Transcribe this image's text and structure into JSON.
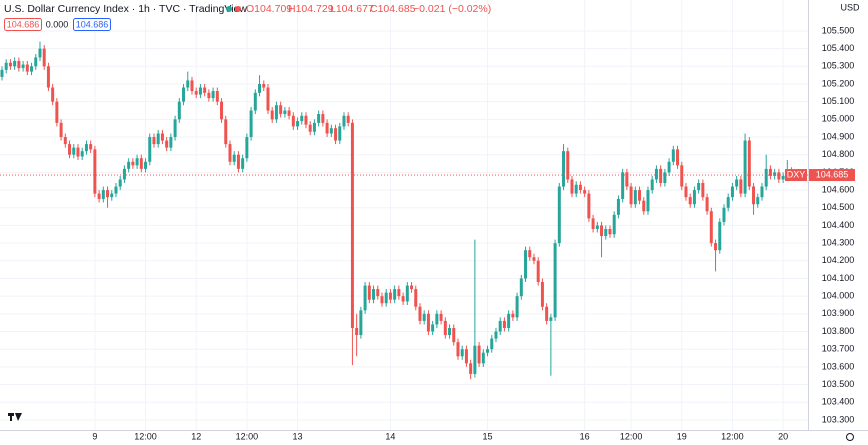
{
  "header": {
    "title": "U.S. Dollar Currency Index · 1h · TVC · TradingView",
    "open": "O104.709",
    "high": "H104.729",
    "low": "L104.677",
    "close": "C104.685",
    "change": "−0.021 (−0.02%)",
    "boxes": [
      "104.686",
      "0.000",
      "104.686"
    ],
    "currency": "USD"
  },
  "chart_data": {
    "type": "candlestick",
    "up_color": "#26a69a",
    "down_color": "#ef5350",
    "grid": true,
    "symbol": "DXY",
    "last_price": 104.685,
    "xlim": [
      -0.47,
      190.9
    ],
    "xticks": [
      {
        "value": 22,
        "label": "9"
      },
      {
        "value": 34,
        "label": "12:00"
      },
      {
        "value": 46,
        "label": "12"
      },
      {
        "value": 58,
        "label": "12:00"
      },
      {
        "value": 70,
        "label": "13"
      },
      {
        "value": 92,
        "label": "14"
      },
      {
        "value": 115,
        "label": "15"
      },
      {
        "value": 138,
        "label": "16"
      },
      {
        "value": 149,
        "label": "12:00"
      },
      {
        "value": 161,
        "label": "19"
      },
      {
        "value": 173,
        "label": "12:00"
      },
      {
        "value": 185,
        "label": "20"
      }
    ],
    "ylim": [
      103.243,
      105.675
    ],
    "yticks": [
      {
        "value": 105.5,
        "label": "105.500"
      },
      {
        "value": 105.4,
        "label": "105.400"
      },
      {
        "value": 105.3,
        "label": "105.300"
      },
      {
        "value": 105.2,
        "label": "105.200"
      },
      {
        "value": 105.1,
        "label": "105.100"
      },
      {
        "value": 105.0,
        "label": "105.000"
      },
      {
        "value": 104.9,
        "label": "104.900"
      },
      {
        "value": 104.8,
        "label": "104.800"
      },
      {
        "value": 104.7,
        "label": "104.700"
      },
      {
        "value": 104.6,
        "label": "104.600"
      },
      {
        "value": 104.5,
        "label": "104.500"
      },
      {
        "value": 104.4,
        "label": "104.400"
      },
      {
        "value": 104.3,
        "label": "104.300"
      },
      {
        "value": 104.2,
        "label": "104.200"
      },
      {
        "value": 104.1,
        "label": "104.100"
      },
      {
        "value": 104.0,
        "label": "104.000"
      },
      {
        "value": 103.9,
        "label": "103.900"
      },
      {
        "value": 103.8,
        "label": "103.800"
      },
      {
        "value": 103.7,
        "label": "103.700"
      },
      {
        "value": 103.6,
        "label": "103.600"
      },
      {
        "value": 103.5,
        "label": "103.500"
      },
      {
        "value": 103.4,
        "label": "103.400"
      },
      {
        "value": 103.3,
        "label": "103.300"
      }
    ],
    "ohlc": [
      [
        105.24,
        105.3,
        105.22,
        105.28
      ],
      [
        105.28,
        105.34,
        105.26,
        105.32
      ],
      [
        105.32,
        105.34,
        105.28,
        105.3
      ],
      [
        105.3,
        105.35,
        105.28,
        105.33
      ],
      [
        105.33,
        105.35,
        105.27,
        105.29
      ],
      [
        105.29,
        105.33,
        105.27,
        105.31
      ],
      [
        105.31,
        105.33,
        105.25,
        105.27
      ],
      [
        105.27,
        105.32,
        105.25,
        105.3
      ],
      [
        105.3,
        105.37,
        105.28,
        105.35
      ],
      [
        105.35,
        105.44,
        105.33,
        105.4
      ],
      [
        105.4,
        105.42,
        105.28,
        105.3
      ],
      [
        105.3,
        105.32,
        105.16,
        105.18
      ],
      [
        105.18,
        105.2,
        105.08,
        105.1
      ],
      [
        105.1,
        105.12,
        104.96,
        104.98
      ],
      [
        104.98,
        105.0,
        104.88,
        104.9
      ],
      [
        104.9,
        104.92,
        104.84,
        104.86
      ],
      [
        104.86,
        104.88,
        104.78,
        104.8
      ],
      [
        104.8,
        104.86,
        104.78,
        104.84
      ],
      [
        104.84,
        104.86,
        104.77,
        104.79
      ],
      [
        104.79,
        104.84,
        104.77,
        104.82
      ],
      [
        104.82,
        104.88,
        104.8,
        104.86
      ],
      [
        104.86,
        104.88,
        104.81,
        104.83
      ],
      [
        104.83,
        104.85,
        104.56,
        104.58
      ],
      [
        104.58,
        104.6,
        104.53,
        104.55
      ],
      [
        104.55,
        104.62,
        104.53,
        104.6
      ],
      [
        104.6,
        104.62,
        104.5,
        104.56
      ],
      [
        104.56,
        104.6,
        104.54,
        104.58
      ],
      [
        104.58,
        104.64,
        104.56,
        104.62
      ],
      [
        104.62,
        104.68,
        104.6,
        104.66
      ],
      [
        104.66,
        104.74,
        104.64,
        104.72
      ],
      [
        104.72,
        104.78,
        104.7,
        104.76
      ],
      [
        104.76,
        104.78,
        104.72,
        104.74
      ],
      [
        104.74,
        104.8,
        104.72,
        104.78
      ],
      [
        104.78,
        104.8,
        104.7,
        104.72
      ],
      [
        104.72,
        104.78,
        104.7,
        104.76
      ],
      [
        104.76,
        104.92,
        104.74,
        104.9
      ],
      [
        104.9,
        104.92,
        104.84,
        104.86
      ],
      [
        104.86,
        104.94,
        104.84,
        104.92
      ],
      [
        104.92,
        104.94,
        104.86,
        104.88
      ],
      [
        104.88,
        104.9,
        104.82,
        104.84
      ],
      [
        104.84,
        104.92,
        104.82,
        104.9
      ],
      [
        104.9,
        105.02,
        104.88,
        105.0
      ],
      [
        105.0,
        105.12,
        104.98,
        105.1
      ],
      [
        105.1,
        105.2,
        105.08,
        105.18
      ],
      [
        105.18,
        105.27,
        105.16,
        105.22
      ],
      [
        105.22,
        105.24,
        105.14,
        105.16
      ],
      [
        105.16,
        105.18,
        105.12,
        105.14
      ],
      [
        105.14,
        105.2,
        105.12,
        105.18
      ],
      [
        105.18,
        105.2,
        105.13,
        105.15
      ],
      [
        105.15,
        105.17,
        105.1,
        105.12
      ],
      [
        105.12,
        105.18,
        105.1,
        105.16
      ],
      [
        105.16,
        105.18,
        105.08,
        105.1
      ],
      [
        105.1,
        105.12,
        104.98,
        105.0
      ],
      [
        105.0,
        105.02,
        104.84,
        104.86
      ],
      [
        104.86,
        104.88,
        104.74,
        104.76
      ],
      [
        104.76,
        104.82,
        104.74,
        104.8
      ],
      [
        104.8,
        104.82,
        104.7,
        104.72
      ],
      [
        104.72,
        104.8,
        104.7,
        104.78
      ],
      [
        104.78,
        104.92,
        104.76,
        104.9
      ],
      [
        104.9,
        105.07,
        104.88,
        105.05
      ],
      [
        105.05,
        105.17,
        105.03,
        105.15
      ],
      [
        105.15,
        105.25,
        105.13,
        105.2
      ],
      [
        105.2,
        105.22,
        105.16,
        105.18
      ],
      [
        105.18,
        105.2,
        105.03,
        105.05
      ],
      [
        105.05,
        105.07,
        104.98,
        105.0
      ],
      [
        105.0,
        105.1,
        104.98,
        105.08
      ],
      [
        105.08,
        105.1,
        105.01,
        105.03
      ],
      [
        105.03,
        105.07,
        105.01,
        105.05
      ],
      [
        105.05,
        105.07,
        105.0,
        105.02
      ],
      [
        105.02,
        105.04,
        104.94,
        104.96
      ],
      [
        104.96,
        105.01,
        104.94,
        104.99
      ],
      [
        104.99,
        105.04,
        104.97,
        105.02
      ],
      [
        105.02,
        105.04,
        104.95,
        104.97
      ],
      [
        104.97,
        104.99,
        104.91,
        104.93
      ],
      [
        104.93,
        105.0,
        104.91,
        104.98
      ],
      [
        104.98,
        105.05,
        104.96,
        105.03
      ],
      [
        105.03,
        105.05,
        104.96,
        104.98
      ],
      [
        104.98,
        105.0,
        104.9,
        104.92
      ],
      [
        104.92,
        104.97,
        104.9,
        104.95
      ],
      [
        104.95,
        104.97,
        104.86,
        104.88
      ],
      [
        104.88,
        104.98,
        104.86,
        104.96
      ],
      [
        104.96,
        105.04,
        104.94,
        105.02
      ],
      [
        105.02,
        105.04,
        104.96,
        104.98
      ],
      [
        104.98,
        105.0,
        103.61,
        103.82
      ],
      [
        103.82,
        103.9,
        103.66,
        103.78
      ],
      [
        103.78,
        103.94,
        103.76,
        103.92
      ],
      [
        103.92,
        104.08,
        103.9,
        104.06
      ],
      [
        104.06,
        104.08,
        103.96,
        103.98
      ],
      [
        103.98,
        104.06,
        103.96,
        104.04
      ],
      [
        104.04,
        104.06,
        103.98,
        104.0
      ],
      [
        104.0,
        104.02,
        103.94,
        103.96
      ],
      [
        103.96,
        104.04,
        103.94,
        104.02
      ],
      [
        104.02,
        104.04,
        103.96,
        103.98
      ],
      [
        103.98,
        104.06,
        103.96,
        104.04
      ],
      [
        104.04,
        104.06,
        103.98,
        104.0
      ],
      [
        104.0,
        104.02,
        103.95,
        103.97
      ],
      [
        103.97,
        104.08,
        103.95,
        104.06
      ],
      [
        104.06,
        104.08,
        104.02,
        104.04
      ],
      [
        104.04,
        104.06,
        103.92,
        103.94
      ],
      [
        103.94,
        103.96,
        103.84,
        103.86
      ],
      [
        103.86,
        103.92,
        103.84,
        103.9
      ],
      [
        103.9,
        103.92,
        103.78,
        103.8
      ],
      [
        103.8,
        103.86,
        103.78,
        103.84
      ],
      [
        103.84,
        103.92,
        103.82,
        103.9
      ],
      [
        103.9,
        103.92,
        103.84,
        103.86
      ],
      [
        103.86,
        103.88,
        103.76,
        103.78
      ],
      [
        103.78,
        103.84,
        103.76,
        103.82
      ],
      [
        103.82,
        103.84,
        103.72,
        103.74
      ],
      [
        103.74,
        103.76,
        103.64,
        103.66
      ],
      [
        103.66,
        103.72,
        103.64,
        103.7
      ],
      [
        103.7,
        103.72,
        103.6,
        103.62
      ],
      [
        103.62,
        103.64,
        103.53,
        103.56
      ],
      [
        103.56,
        104.32,
        103.54,
        103.72
      ],
      [
        103.72,
        103.74,
        103.6,
        103.62
      ],
      [
        103.62,
        103.7,
        103.6,
        103.68
      ],
      [
        103.68,
        103.72,
        103.66,
        103.7
      ],
      [
        103.7,
        103.78,
        103.68,
        103.76
      ],
      [
        103.76,
        103.82,
        103.74,
        103.8
      ],
      [
        103.8,
        103.88,
        103.78,
        103.86
      ],
      [
        103.86,
        103.88,
        103.8,
        103.82
      ],
      [
        103.82,
        103.92,
        103.8,
        103.9
      ],
      [
        103.9,
        103.92,
        103.86,
        103.88
      ],
      [
        103.88,
        104.02,
        103.86,
        104.0
      ],
      [
        104.0,
        104.12,
        103.98,
        104.1
      ],
      [
        104.1,
        104.28,
        104.08,
        104.26
      ],
      [
        104.26,
        104.28,
        104.2,
        104.22
      ],
      [
        104.22,
        104.24,
        104.18,
        104.2
      ],
      [
        104.2,
        104.22,
        104.06,
        104.08
      ],
      [
        104.08,
        104.1,
        103.92,
        103.94
      ],
      [
        103.94,
        103.96,
        103.84,
        103.86
      ],
      [
        103.86,
        103.9,
        103.55,
        103.88
      ],
      [
        103.88,
        104.32,
        103.86,
        104.3
      ],
      [
        104.3,
        104.64,
        104.28,
        104.62
      ],
      [
        104.62,
        104.86,
        104.6,
        104.82
      ],
      [
        104.82,
        104.84,
        104.64,
        104.66
      ],
      [
        104.66,
        104.68,
        104.56,
        104.58
      ],
      [
        104.58,
        104.65,
        104.56,
        104.63
      ],
      [
        104.63,
        104.65,
        104.58,
        104.6
      ],
      [
        104.6,
        104.62,
        104.56,
        104.58
      ],
      [
        104.58,
        104.6,
        104.42,
        104.44
      ],
      [
        104.44,
        104.46,
        104.36,
        104.38
      ],
      [
        104.38,
        104.42,
        104.36,
        104.4
      ],
      [
        104.4,
        104.42,
        104.22,
        104.34
      ],
      [
        104.34,
        104.4,
        104.32,
        104.38
      ],
      [
        104.38,
        104.4,
        104.33,
        104.35
      ],
      [
        104.35,
        104.48,
        104.33,
        104.46
      ],
      [
        104.46,
        104.57,
        104.44,
        104.55
      ],
      [
        104.55,
        104.72,
        104.53,
        104.7
      ],
      [
        104.7,
        104.72,
        104.6,
        104.62
      ],
      [
        104.62,
        104.64,
        104.5,
        104.52
      ],
      [
        104.52,
        104.62,
        104.5,
        104.6
      ],
      [
        104.6,
        104.62,
        104.52,
        104.54
      ],
      [
        104.54,
        104.56,
        104.46,
        104.48
      ],
      [
        104.48,
        104.62,
        104.46,
        104.6
      ],
      [
        104.6,
        104.68,
        104.58,
        104.66
      ],
      [
        104.66,
        104.74,
        104.64,
        104.72
      ],
      [
        104.72,
        104.74,
        104.62,
        104.64
      ],
      [
        104.64,
        104.72,
        104.62,
        104.7
      ],
      [
        104.7,
        104.78,
        104.68,
        104.76
      ],
      [
        104.76,
        104.85,
        104.74,
        104.83
      ],
      [
        104.83,
        104.85,
        104.72,
        104.74
      ],
      [
        104.74,
        104.76,
        104.6,
        104.62
      ],
      [
        104.62,
        104.64,
        104.54,
        104.56
      ],
      [
        104.56,
        104.58,
        104.5,
        104.52
      ],
      [
        104.52,
        104.62,
        104.5,
        104.6
      ],
      [
        104.6,
        104.66,
        104.58,
        104.64
      ],
      [
        104.64,
        104.66,
        104.54,
        104.56
      ],
      [
        104.56,
        104.58,
        104.46,
        104.48
      ],
      [
        104.48,
        104.5,
        104.28,
        104.3
      ],
      [
        104.3,
        104.32,
        104.14,
        104.26
      ],
      [
        104.26,
        104.44,
        104.24,
        104.42
      ],
      [
        104.42,
        104.52,
        104.4,
        104.5
      ],
      [
        104.5,
        104.58,
        104.48,
        104.56
      ],
      [
        104.56,
        104.64,
        104.54,
        104.62
      ],
      [
        104.62,
        104.68,
        104.6,
        104.66
      ],
      [
        104.66,
        104.68,
        104.56,
        104.58
      ],
      [
        104.58,
        104.92,
        104.56,
        104.88
      ],
      [
        104.88,
        104.9,
        104.6,
        104.62
      ],
      [
        104.62,
        104.64,
        104.46,
        104.52
      ],
      [
        104.52,
        104.58,
        104.5,
        104.56
      ],
      [
        104.56,
        104.64,
        104.54,
        104.62
      ],
      [
        104.62,
        104.8,
        104.6,
        104.72
      ],
      [
        104.72,
        104.74,
        104.66,
        104.68
      ],
      [
        104.68,
        104.72,
        104.66,
        104.7
      ],
      [
        104.7,
        104.72,
        104.64,
        104.66
      ],
      [
        104.66,
        104.7,
        104.64,
        104.68
      ],
      [
        104.68,
        104.77,
        104.66,
        104.709
      ],
      [
        104.709,
        104.729,
        104.677,
        104.685
      ]
    ]
  }
}
